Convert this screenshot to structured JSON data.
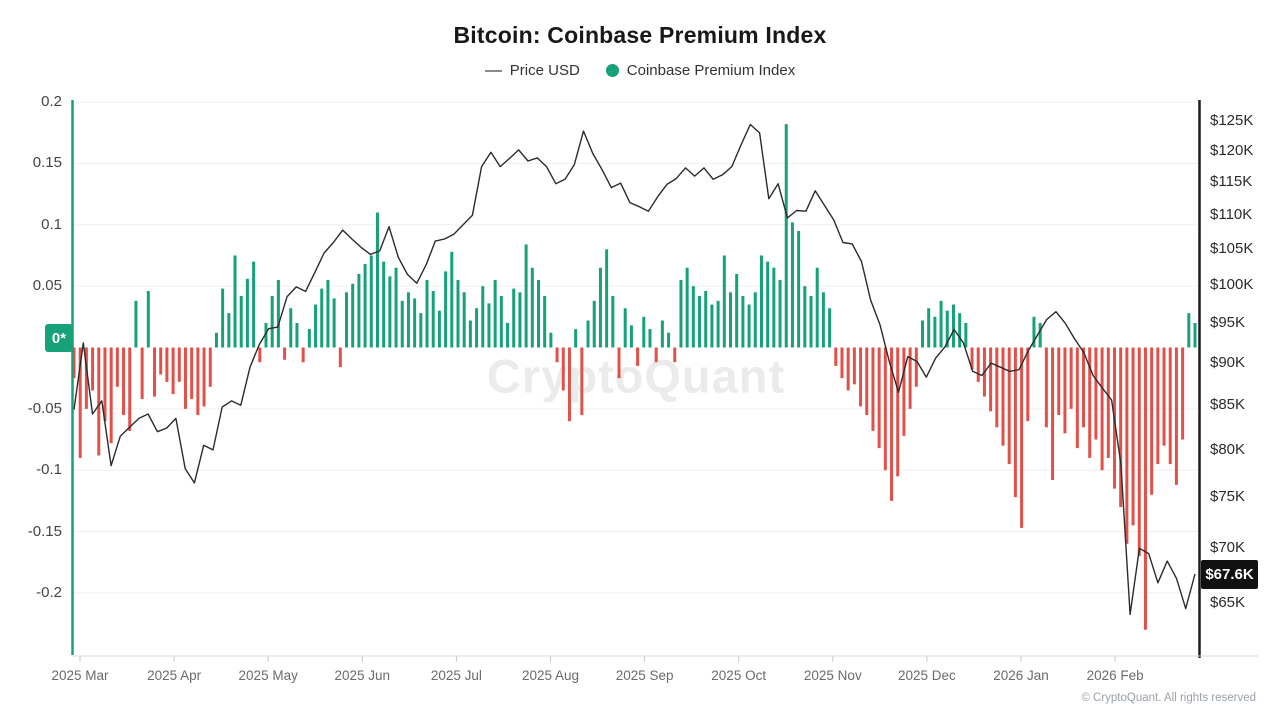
{
  "title": "Bitcoin: Coinbase Premium Index",
  "legend": {
    "price_label": "Price USD",
    "premium_label": "Coinbase Premium Index"
  },
  "watermark": "CryptoQuant",
  "footer": "© CryptoQuant. All rights reserved",
  "colors": {
    "premium_positive": "#17a179",
    "premium_negative": "#e35049",
    "price_line": "#2b2b2b",
    "left_axis": "#17a179",
    "right_axis": "#1c1c1c",
    "gridline": "#f0f0f0",
    "bottom_axis": "#d9d9d9",
    "tick_mark": "#c9c9c9"
  },
  "axes": {
    "left": {
      "zero_badge": "0*",
      "ticks": [
        {
          "label": "0.2",
          "value": 0.2
        },
        {
          "label": "0.15",
          "value": 0.15
        },
        {
          "label": "0.1",
          "value": 0.1
        },
        {
          "label": "0.05",
          "value": 0.05
        },
        {
          "label": "-0.05",
          "value": -0.05
        },
        {
          "label": "-0.1",
          "value": -0.1
        },
        {
          "label": "-0.15",
          "value": -0.15
        },
        {
          "label": "-0.2",
          "value": -0.2
        }
      ]
    },
    "right": {
      "scale": "log",
      "last_price_badge": "$67.6K",
      "last_price_value_k": 67.6,
      "ticks": [
        {
          "label": "$125K",
          "value": 125
        },
        {
          "label": "$120K",
          "value": 120
        },
        {
          "label": "$115K",
          "value": 115
        },
        {
          "label": "$110K",
          "value": 110
        },
        {
          "label": "$105K",
          "value": 105
        },
        {
          "label": "$100K",
          "value": 100
        },
        {
          "label": "$95K",
          "value": 95
        },
        {
          "label": "$90K",
          "value": 90
        },
        {
          "label": "$85K",
          "value": 85
        },
        {
          "label": "$80K",
          "value": 80
        },
        {
          "label": "$75K",
          "value": 75
        },
        {
          "label": "$70K",
          "value": 70
        },
        {
          "label": "$65K",
          "value": 65
        }
      ]
    },
    "x": {
      "labels": [
        "2025 Mar",
        "2025 Apr",
        "2025 May",
        "2025 Jun",
        "2025 Jul",
        "2025 Aug",
        "2025 Sep",
        "2025 Oct",
        "2025 Nov",
        "2025 Dec",
        "2026 Jan",
        "2026 Feb"
      ]
    }
  },
  "chart_data": {
    "type": "combo",
    "title": "Bitcoin: Coinbase Premium Index",
    "x_range": [
      "2025-03-01",
      "2026-02-26"
    ],
    "x_tick_labels": [
      "2025 Mar",
      "2025 Apr",
      "2025 May",
      "2025 Jun",
      "2025 Jul",
      "2025 Aug",
      "2025 Sep",
      "2025 Oct",
      "2025 Nov",
      "2025 Dec",
      "2026 Jan",
      "2026 Feb"
    ],
    "left_axis": {
      "series": "Coinbase Premium Index",
      "range": [
        -0.25,
        0.202
      ],
      "ticks": [
        0.2,
        0.15,
        0.1,
        0.05,
        -0.05,
        -0.1,
        -0.15,
        -0.2
      ]
    },
    "right_axis": {
      "series": "Price USD",
      "scale": "log",
      "range_k": [
        62,
        126
      ],
      "ticks_k": [
        125,
        120,
        115,
        110,
        105,
        100,
        95,
        90,
        85,
        80,
        75,
        70,
        65
      ],
      "last_value_k": 67.6
    },
    "series": [
      {
        "name": "Coinbase Premium Index",
        "type": "bar",
        "step_days": 2,
        "positive_color": "#17a179",
        "negative_color": "#e35049",
        "values": [
          -0.025,
          -0.09,
          -0.05,
          -0.035,
          -0.088,
          -0.06,
          -0.078,
          -0.032,
          -0.055,
          -0.068,
          0.038,
          -0.042,
          0.046,
          -0.04,
          -0.022,
          -0.028,
          -0.038,
          -0.028,
          -0.05,
          -0.042,
          -0.055,
          -0.048,
          -0.032,
          0.012,
          0.048,
          0.028,
          0.075,
          0.042,
          0.056,
          0.07,
          -0.012,
          0.02,
          0.042,
          0.055,
          -0.01,
          0.032,
          0.02,
          -0.012,
          0.015,
          0.035,
          0.048,
          0.055,
          0.04,
          -0.016,
          0.045,
          0.052,
          0.06,
          0.068,
          0.075,
          0.11,
          0.07,
          0.058,
          0.065,
          0.038,
          0.045,
          0.04,
          0.028,
          0.055,
          0.046,
          0.03,
          0.062,
          0.078,
          0.055,
          0.045,
          0.022,
          0.032,
          0.05,
          0.036,
          0.055,
          0.042,
          0.02,
          0.048,
          0.045,
          0.084,
          0.065,
          0.055,
          0.042,
          0.012,
          -0.012,
          -0.035,
          -0.06,
          0.015,
          -0.055,
          0.022,
          0.038,
          0.065,
          0.08,
          0.042,
          -0.025,
          0.032,
          0.018,
          -0.015,
          0.025,
          0.015,
          -0.012,
          0.022,
          0.012,
          -0.012,
          0.055,
          0.065,
          0.05,
          0.042,
          0.046,
          0.035,
          0.038,
          0.075,
          0.045,
          0.06,
          0.042,
          0.035,
          0.045,
          0.075,
          0.07,
          0.065,
          0.055,
          0.182,
          0.102,
          0.095,
          0.05,
          0.042,
          0.065,
          0.045,
          0.032,
          -0.015,
          -0.025,
          -0.035,
          -0.03,
          -0.048,
          -0.055,
          -0.068,
          -0.082,
          -0.1,
          -0.125,
          -0.105,
          -0.072,
          -0.05,
          -0.032,
          0.022,
          0.032,
          0.025,
          0.038,
          0.03,
          0.035,
          0.028,
          0.02,
          -0.018,
          -0.028,
          -0.04,
          -0.052,
          -0.065,
          -0.08,
          -0.095,
          -0.122,
          -0.147,
          -0.06,
          0.025,
          0.02,
          -0.065,
          -0.108,
          -0.055,
          -0.07,
          -0.05,
          -0.082,
          -0.065,
          -0.09,
          -0.075,
          -0.1,
          -0.09,
          -0.115,
          -0.13,
          -0.16,
          -0.145,
          -0.17,
          -0.23,
          -0.12,
          -0.095,
          -0.08,
          -0.095,
          -0.112,
          -0.075,
          0.028,
          0.02
        ]
      },
      {
        "name": "Price USD",
        "type": "line",
        "unit": "USD (thousands)",
        "step_days": 3,
        "color": "#2b2b2b",
        "values": [
          84.5,
          92.5,
          84,
          85.5,
          78.3,
          81.5,
          82.5,
          83.5,
          84,
          82,
          82.4,
          83.5,
          78,
          76.5,
          80.5,
          80,
          84.8,
          85.5,
          85,
          89.5,
          92.3,
          94.3,
          94.5,
          98.5,
          99.8,
          99.2,
          101.8,
          104.5,
          106,
          107.8,
          106.5,
          105.3,
          104.3,
          104.8,
          108.3,
          103.9,
          101.5,
          100.3,
          102.8,
          106.2,
          106.5,
          107.2,
          108.6,
          110,
          117.5,
          119.8,
          117.5,
          118.8,
          120.2,
          118.4,
          118.9,
          117.5,
          114.8,
          115.5,
          117.8,
          123.3,
          119.6,
          117,
          114.2,
          114.9,
          111.9,
          111.3,
          110.6,
          112.8,
          114.7,
          115.6,
          117.3,
          116,
          117.3,
          115.5,
          116.2,
          117.5,
          121,
          124.4,
          123,
          112.5,
          114.8,
          109.6,
          110.7,
          110.6,
          113.7,
          111.5,
          109.3,
          106,
          105.8,
          103.3,
          98,
          94.8,
          90.2,
          86.5,
          90.8,
          90.2,
          88.3,
          90.6,
          92,
          94.2,
          92.5,
          89,
          88.5,
          90,
          89.5,
          89,
          89.2,
          91.5,
          93.5,
          95.5,
          96.5,
          95,
          93,
          91.3,
          88.5,
          87,
          85.6,
          78.5,
          64,
          70,
          69.5,
          66.8,
          68.8,
          67.2,
          64.5,
          67.6
        ]
      }
    ]
  }
}
